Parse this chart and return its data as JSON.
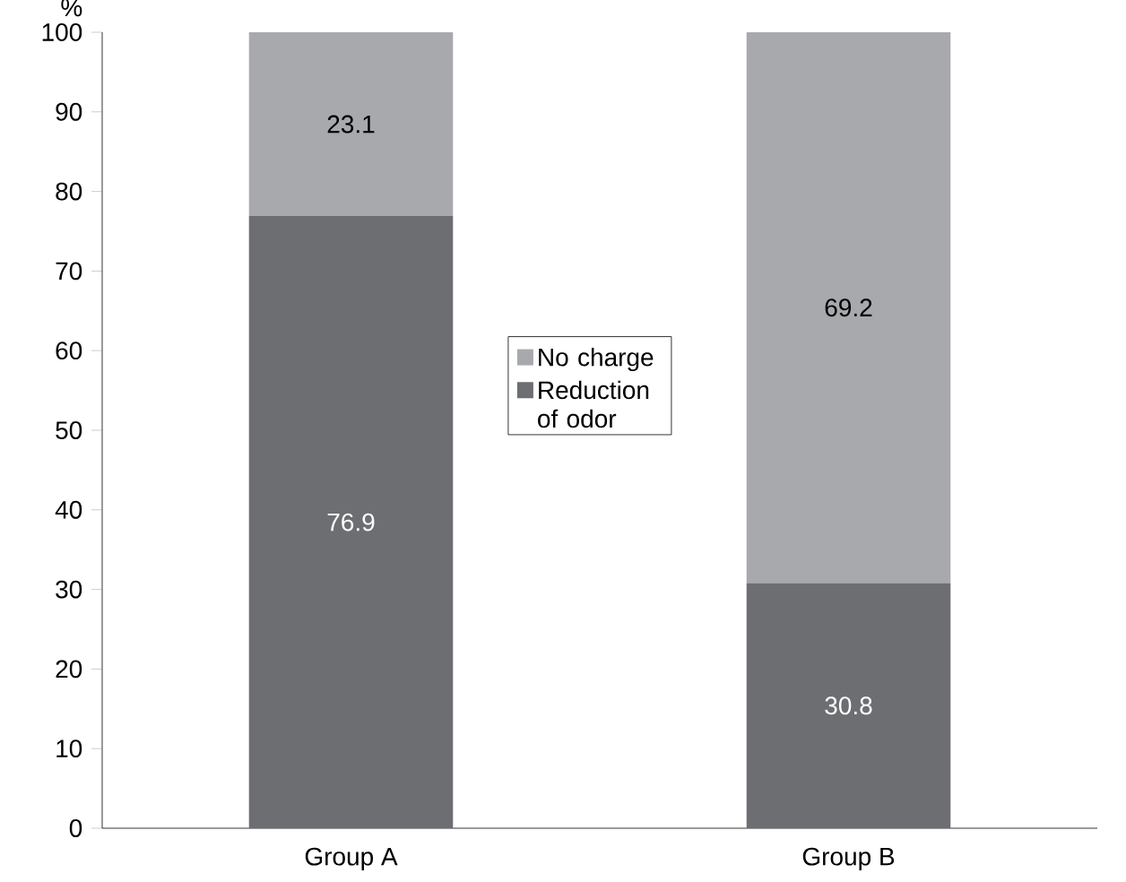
{
  "chart_data": {
    "type": "bar",
    "stacked": true,
    "ylabel": "%",
    "categories": [
      "Group A",
      "Group B"
    ],
    "series": [
      {
        "name": "Reduction of odor",
        "color": "#6d6e71",
        "values": [
          76.9,
          30.8
        ],
        "value_labels": [
          "76.9",
          "30.8"
        ]
      },
      {
        "name": "No charge",
        "color": "#a7a9ac",
        "values": [
          23.1,
          69.2
        ],
        "value_labels": [
          "23.1",
          "69.2"
        ]
      }
    ],
    "ylim": [
      0,
      100
    ],
    "yticks": [
      0,
      10,
      20,
      30,
      40,
      50,
      60,
      70,
      80,
      90,
      100
    ],
    "grid": false,
    "legend": "center"
  }
}
